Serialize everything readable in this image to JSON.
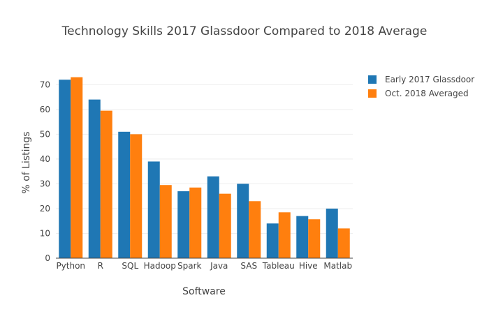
{
  "chart_data": {
    "type": "bar",
    "title": "Technology Skills 2017 Glassdoor Compared to 2018 Average",
    "xlabel": "Software",
    "ylabel": "% of Listings",
    "categories": [
      "Python",
      "R",
      "SQL",
      "Hadoop",
      "Spark",
      "Java",
      "SAS",
      "Tableau",
      "Hive",
      "Matlab"
    ],
    "series": [
      {
        "name": "Early 2017 Glassdoor",
        "color": "#1f77b4",
        "values": [
          72,
          64,
          51,
          39,
          27,
          33,
          30,
          14,
          17,
          20
        ]
      },
      {
        "name": "Oct. 2018 Averaged",
        "color": "#ff7f0e",
        "values": [
          73,
          59.5,
          50,
          29.5,
          28.5,
          26,
          23,
          18.5,
          15.7,
          12
        ]
      }
    ],
    "ylim": [
      0,
      76
    ],
    "yticks": [
      0,
      10,
      20,
      30,
      40,
      50,
      60,
      70
    ],
    "grid": true,
    "legend_position": "top-right"
  }
}
